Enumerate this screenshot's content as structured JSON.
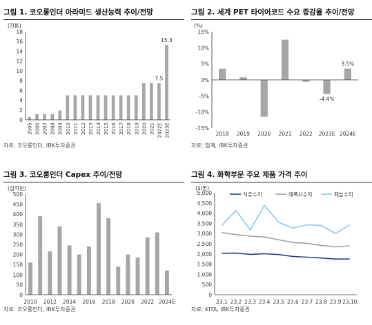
{
  "colors": {
    "bar": "#a6a6a6",
    "axis": "#333333",
    "grid": "#d0d0d0",
    "petro": "#1f3f8f",
    "pe": "#a0a0a0",
    "waste": "#8cc6ef"
  },
  "charts": [
    {
      "title": "그림 1. 코오롱인더 아라미드 생산능력 추이/전망",
      "source": "자료: 코오롱인더, IBK투자증권",
      "unit": "(천톤)",
      "chart_data": {
        "type": "bar",
        "categories": [
          "2005",
          "2006",
          "2007",
          "2008",
          "2009",
          "2010",
          "2011",
          "2012",
          "2013",
          "2014",
          "2015",
          "2016",
          "2017",
          "2018",
          "2019",
          "2020",
          "2021",
          "2022E",
          "2023E"
        ],
        "values": [
          0.6,
          1.2,
          1.2,
          1.2,
          1.9,
          5,
          5,
          5,
          5,
          5,
          5,
          5,
          5,
          5,
          5,
          7.5,
          7.5,
          7.5,
          15.3
        ],
        "labels": {
          "17": "7.5",
          "18": "15.3"
        },
        "ylim": [
          0,
          18
        ],
        "yticks": [
          0,
          2,
          4,
          6,
          8,
          10,
          12,
          14,
          16,
          18
        ],
        "grid": false
      }
    },
    {
      "title": "그림 2. 세계 PET 타이어코드 수요 증감율 추이/전망",
      "source": "자료: 업계, IBK투자증권",
      "unit": "(%)",
      "chart_data": {
        "type": "bar",
        "categories": [
          "2018",
          "2019",
          "2020",
          "2021",
          "2022",
          "2023E",
          "2024E"
        ],
        "values": [
          3.5,
          0.8,
          -11.5,
          12.5,
          -0.6,
          -4.4,
          3.5
        ],
        "labels": {
          "5": "-4.4%",
          "6": "3.5%"
        },
        "ylim": [
          -15,
          15
        ],
        "yticks": [
          -15,
          -10,
          -5,
          0,
          5,
          10,
          15
        ],
        "ytick_labels": [
          "-15%",
          "-10%",
          "-5%",
          "0%",
          "5%",
          "10%",
          "15%"
        ],
        "grid": false
      }
    },
    {
      "title": "그림 3. 코오롱인더 Capex 추이/전망",
      "source": "자료: 코오롱인더, IBK투자증권",
      "unit": "(십억원)",
      "chart_data": {
        "type": "bar",
        "categories": [
          "2010",
          "2011",
          "2012",
          "2013",
          "2014",
          "2015",
          "2016",
          "2017",
          "2018",
          "2019",
          "2020",
          "2021",
          "2022",
          "2023E",
          "2024E"
        ],
        "values": [
          160,
          390,
          215,
          340,
          245,
          200,
          240,
          455,
          380,
          140,
          200,
          185,
          285,
          310,
          120
        ],
        "tick_labels": {
          "0": "2010",
          "2": "2012",
          "4": "2014",
          "6": "2016",
          "8": "2018",
          "10": "2020",
          "12": "2022",
          "14": "2024E"
        },
        "ylim": [
          0,
          500
        ],
        "yticks": [
          0,
          50,
          100,
          150,
          200,
          250,
          300,
          350,
          400,
          450,
          500
        ],
        "grid": false
      }
    },
    {
      "title": "그림 4. 화학부문 주요 제품 가격 추이",
      "source": "자료: KITA, IBK투자증권",
      "unit": "($/톤)",
      "chart_data": {
        "type": "line",
        "categories": [
          "23.1",
          "23.2",
          "23.3",
          "23.4",
          "23.5",
          "23.6",
          "23.7",
          "23.8",
          "23.9",
          "23.10"
        ],
        "series": [
          {
            "name": "석유수지",
            "color": "#1f3f8f",
            "values": [
              2030,
              2040,
              1980,
              2010,
              1970,
              1880,
              1840,
              1800,
              1750,
              1750
            ]
          },
          {
            "name": "에폭시수지",
            "color": "#a0a0a0",
            "values": [
              3050,
              2950,
              2870,
              2830,
              2700,
              2560,
              2520,
              2420,
              2350,
              2400
            ]
          },
          {
            "name": "페놀수지",
            "color": "#8cc6ef",
            "values": [
              3400,
              4130,
              3180,
              4380,
              3550,
              3270,
              3430,
              3400,
              3000,
              3430
            ]
          }
        ],
        "ylim": [
          0,
          5000
        ],
        "yticks": [
          0,
          500,
          1000,
          1500,
          2000,
          2500,
          3000,
          3500,
          4000,
          4500,
          5000
        ],
        "ytick_labels": [
          "0",
          "500",
          "1,000",
          "1,500",
          "2,000",
          "2,500",
          "3,000",
          "3,500",
          "4,000",
          "4,500",
          "5,000"
        ],
        "legend": "top",
        "grid": false
      }
    }
  ]
}
